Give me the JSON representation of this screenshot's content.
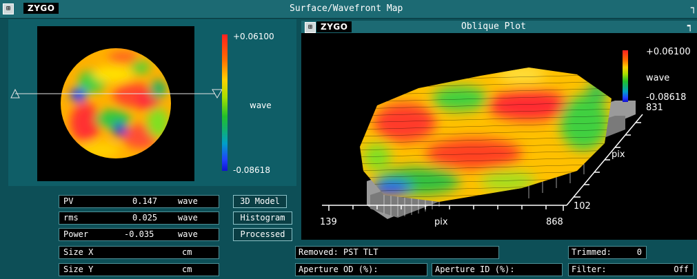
{
  "main_window": {
    "menu_icon": "window-menu-icon",
    "logo": "ZYGO",
    "title": "Surface/Wavefront Map"
  },
  "surface_map": {
    "scale_max": "+0.06100",
    "scale_min": "-0.08618",
    "unit": "wave",
    "profile_line": "horizontal"
  },
  "oblique_window": {
    "logo": "ZYGO",
    "title": "Oblique Plot",
    "scale_max": "+0.06100",
    "unit": "wave",
    "scale_min": "-0.08618",
    "points": "831",
    "x_axis_start": "139",
    "x_axis_label": "pix",
    "x_axis_end": "868",
    "y_axis_label": "pix",
    "y_axis_value": "102"
  },
  "stats": [
    {
      "label": "PV",
      "value": "0.147",
      "unit": "wave"
    },
    {
      "label": "rms",
      "value": "0.025",
      "unit": "wave"
    },
    {
      "label": "Power",
      "value": "-0.035",
      "unit": "wave"
    },
    {
      "label": "Size X",
      "value": "",
      "unit": "cm"
    },
    {
      "label": "Size Y",
      "value": "",
      "unit": "cm"
    }
  ],
  "buttons": {
    "model_3d": "3D Model",
    "histogram": "Histogram",
    "processed": "Processed"
  },
  "info": {
    "removed": "Removed: PST TLT",
    "trimmed_label": "Trimmed:",
    "trimmed_value": "0",
    "aperture_od": "Aperture OD (%):",
    "aperture_id": "Aperture ID (%):",
    "filter_label": "Filter:",
    "filter_value": "Off"
  },
  "colors": {
    "panel_bg": "#0d4f57",
    "titlebar": "#1c6a73"
  }
}
